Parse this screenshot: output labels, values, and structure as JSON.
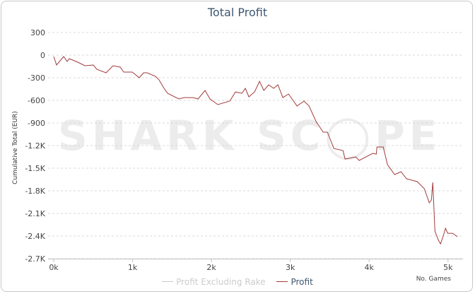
{
  "chart_data": {
    "type": "line",
    "title": "Total Profit",
    "xlabel": "No. Games",
    "ylabel": "Cumulative Total (EUR)",
    "xlim": [
      0,
      5190
    ],
    "ylim": [
      -2700,
      300
    ],
    "grid": true,
    "y_ticks": [
      300,
      0,
      -300,
      -600,
      -900,
      -1200,
      -1500,
      -1800,
      -2100,
      -2400,
      -2700
    ],
    "y_tick_labels": [
      "300",
      "0",
      "-300",
      "-600",
      "-900",
      "-1.2K",
      "-1.5K",
      "-1.8K",
      "-2.1K",
      "-2.4K",
      "-2.7K"
    ],
    "x_ticks": [
      0,
      1000,
      2000,
      3000,
      4000,
      5000
    ],
    "x_tick_labels": [
      "0k",
      "1k",
      "2k",
      "3k",
      "4k",
      "5k"
    ],
    "legend": {
      "placement": "bottom-center",
      "entries": [
        {
          "name": "Profit Excluding Rake",
          "color": "#cccccc",
          "hidden": true
        },
        {
          "name": "Profit",
          "color": "#a33b3b",
          "hidden": false
        }
      ]
    },
    "watermark": "SHARK SCOPE",
    "series": [
      {
        "name": "Profit",
        "color": "#a33b3b",
        "x": [
          0,
          36,
          126,
          170,
          197,
          305,
          395,
          502,
          547,
          664,
          753,
          843,
          888,
          996,
          1085,
          1139,
          1184,
          1291,
          1336,
          1399,
          1444,
          1587,
          1650,
          1767,
          1830,
          1919,
          1982,
          2081,
          2233,
          2305,
          2386,
          2430,
          2475,
          2547,
          2610,
          2664,
          2726,
          2789,
          2843,
          2906,
          2978,
          3085,
          3175,
          3238,
          3327,
          3417,
          3471,
          3552,
          3668,
          3695,
          3830,
          3874,
          4045,
          4090,
          4099,
          4179,
          4233,
          4323,
          4404,
          4475,
          4610,
          4700,
          4762,
          4789,
          4807,
          4834,
          4879,
          4906,
          4942,
          4969,
          4996,
          5058,
          5121
        ],
        "y": [
          -19,
          -131,
          -19,
          -84,
          -47,
          -94,
          -141,
          -131,
          -188,
          -234,
          -141,
          -159,
          -225,
          -225,
          -300,
          -234,
          -234,
          -281,
          -328,
          -441,
          -506,
          -581,
          -563,
          -563,
          -581,
          -469,
          -581,
          -656,
          -609,
          -488,
          -506,
          -441,
          -553,
          -488,
          -347,
          -469,
          -394,
          -441,
          -394,
          -563,
          -516,
          -675,
          -609,
          -675,
          -881,
          -1022,
          -1022,
          -1238,
          -1266,
          -1378,
          -1350,
          -1397,
          -1303,
          -1313,
          -1219,
          -1219,
          -1453,
          -1584,
          -1547,
          -1641,
          -1678,
          -1772,
          -1959,
          -1922,
          -1688,
          -2334,
          -2456,
          -2503,
          -2391,
          -2297,
          -2363,
          -2363,
          -2409
        ]
      }
    ]
  }
}
